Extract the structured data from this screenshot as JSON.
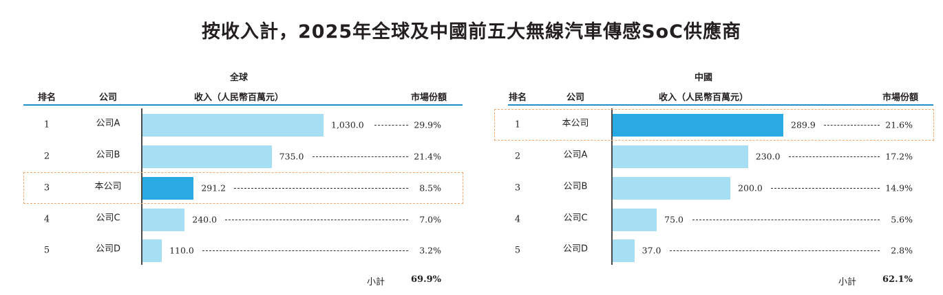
{
  "title": "按收入計，2025年全球及中國前五大無線汽車傳感SoC供應商",
  "headers": {
    "rank": "排名",
    "company": "公司",
    "revenue": "收入（人民幣百萬元）",
    "share": "市場份額"
  },
  "subtotal_label": "小計",
  "colors": {
    "highlight_bar": "#2aaae2",
    "bar": "#a6def3",
    "header_line": "#1e8fc9",
    "highlight_box": "#f2a66a"
  },
  "chart_data": [
    {
      "type": "bar",
      "title": "全球",
      "orientation": "horizontal",
      "highlight": "本公司",
      "rows": [
        {
          "rank": "1",
          "company": "公司A",
          "revenue": 1030.0,
          "revenue_label": "1,030.0",
          "share": "29.9%"
        },
        {
          "rank": "2",
          "company": "公司B",
          "revenue": 735.0,
          "revenue_label": "735.0",
          "share": "21.4%"
        },
        {
          "rank": "3",
          "company": "本公司",
          "revenue": 291.2,
          "revenue_label": "291.2",
          "share": "8.5%"
        },
        {
          "rank": "4",
          "company": "公司C",
          "revenue": 240.0,
          "revenue_label": "240.0",
          "share": "7.0%"
        },
        {
          "rank": "5",
          "company": "公司D",
          "revenue": 110.0,
          "revenue_label": "110.0",
          "share": "3.2%"
        }
      ],
      "subtotal": "69.9%"
    },
    {
      "type": "bar",
      "title": "中國",
      "orientation": "horizontal",
      "highlight": "本公司",
      "rows": [
        {
          "rank": "1",
          "company": "本公司",
          "revenue": 289.9,
          "revenue_label": "289.9",
          "share": "21.6%"
        },
        {
          "rank": "2",
          "company": "公司A",
          "revenue": 230.0,
          "revenue_label": "230.0",
          "share": "17.2%"
        },
        {
          "rank": "3",
          "company": "公司B",
          "revenue": 200.0,
          "revenue_label": "200.0",
          "share": "14.9%"
        },
        {
          "rank": "4",
          "company": "公司C",
          "revenue": 75.0,
          "revenue_label": "75.0",
          "share": "5.6%"
        },
        {
          "rank": "5",
          "company": "公司D",
          "revenue": 37.0,
          "revenue_label": "37.0",
          "share": "2.8%"
        }
      ],
      "subtotal": "62.1%"
    }
  ]
}
